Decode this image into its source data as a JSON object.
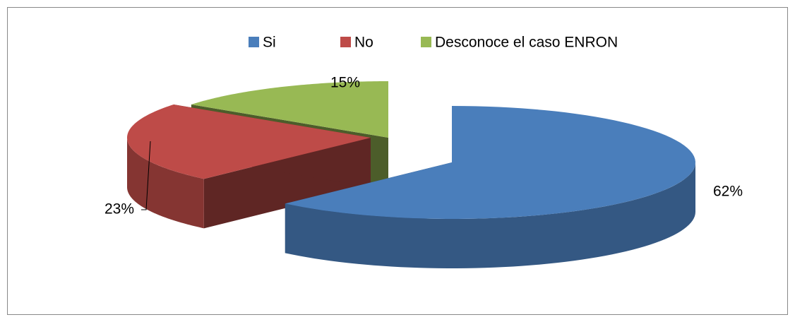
{
  "chart_data": {
    "type": "pie3d",
    "categories": [
      "Si",
      "No",
      "Desconoce el caso ENRON"
    ],
    "values": [
      62,
      23,
      15
    ],
    "value_labels": [
      "62%",
      "23%",
      "15%"
    ],
    "colors": [
      "#4a7ebb",
      "#be4b48",
      "#98b954"
    ],
    "legend": "top"
  }
}
